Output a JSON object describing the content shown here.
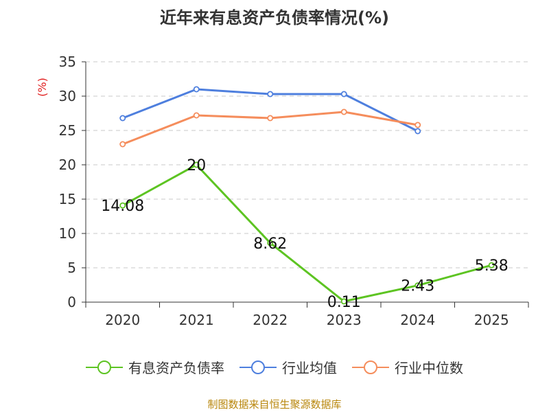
{
  "chart_data": {
    "type": "line",
    "title": "近年来有息资产负债率情况(%)",
    "ylabel": "(%)",
    "xlabel": "",
    "categories": [
      "2020",
      "2021",
      "2022",
      "2023",
      "2024",
      "2025"
    ],
    "ylim": [
      0,
      35
    ],
    "yticks": [
      0,
      5,
      10,
      15,
      20,
      25,
      30,
      35
    ],
    "grid": true,
    "legend_position": "bottom",
    "series": [
      {
        "name": "有息资产负债率",
        "color": "#5dc422",
        "values": [
          14.08,
          20,
          8.62,
          0.11,
          2.43,
          5.38
        ],
        "data_labels": [
          "14.08",
          "20",
          "8.62",
          "0.11",
          "2.43",
          "5.38"
        ]
      },
      {
        "name": "行业均值",
        "color": "#4e7fde",
        "values": [
          26.8,
          31.0,
          30.3,
          30.3,
          24.9,
          null
        ]
      },
      {
        "name": "行业中位数",
        "color": "#f58d5c",
        "values": [
          23.0,
          27.2,
          26.8,
          27.7,
          25.8,
          null
        ]
      }
    ]
  },
  "source": "制图数据来自恒生聚源数据库"
}
